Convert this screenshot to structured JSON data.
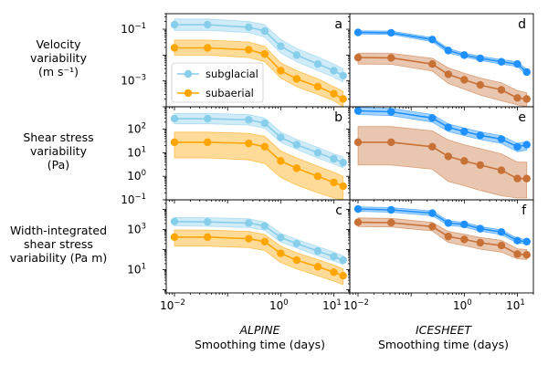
{
  "chart_data": {
    "type": "line",
    "x_scale": "log",
    "y_scale": "log",
    "xlim": [
      0.007,
      20
    ],
    "x_ticks": [
      {
        "v": 0.01,
        "label": "10",
        "exp": "−2"
      },
      {
        "v": 1,
        "label": "10",
        "exp": "0"
      },
      {
        "v": 10,
        "label": "10",
        "exp": "1"
      }
    ],
    "columns": [
      {
        "name": "ALPINE",
        "xlabel": "Smoothing time (days)"
      },
      {
        "name": "ICESHEET",
        "xlabel": "Smoothing time (days)"
      }
    ],
    "rows": [
      {
        "ylabel": [
          "Velocity",
          "variability",
          "(m s⁻¹)"
        ],
        "ylim": [
          0.0001,
          0.4
        ],
        "y_ticks": [
          {
            "v": 0.1,
            "label": "10",
            "exp": "−1"
          },
          {
            "v": 0.001,
            "label": "10",
            "exp": "−3"
          }
        ]
      },
      {
        "ylabel": [
          "Shear stress",
          "variability",
          "(Pa)"
        ],
        "ylim": [
          0.1,
          900
        ],
        "y_ticks": [
          {
            "v": 100,
            "label": "10",
            "exp": "2"
          },
          {
            "v": 10,
            "label": "10",
            "exp": "1"
          },
          {
            "v": 1,
            "label": "10",
            "exp": "0"
          },
          {
            "v": 0.1,
            "label": "10",
            "exp": "−1"
          }
        ]
      },
      {
        "ylabel": [
          "Width-integrated",
          "shear stress",
          "variability (Pa m)"
        ],
        "ylim": [
          0.7,
          30000
        ],
        "y_ticks": [
          {
            "v": 1000,
            "label": "10",
            "exp": "3"
          },
          {
            "v": 10,
            "label": "10",
            "exp": "1"
          }
        ]
      }
    ],
    "x": [
      0.01,
      0.042,
      0.25,
      0.5,
      1,
      2,
      5,
      10,
      15
    ],
    "panels": [
      {
        "label": "a",
        "row": 0,
        "col": 0,
        "series": [
          {
            "name": "subglacial",
            "color": "#87ceeb",
            "fill": "#87ceeb",
            "values": [
              0.15,
              0.15,
              0.12,
              0.085,
              0.022,
              0.01,
              0.0045,
              0.0025,
              0.0016
            ],
            "lower": [
              0.09,
              0.09,
              0.075,
              0.05,
              0.012,
              0.0055,
              0.0025,
              0.0014,
              0.0009
            ],
            "upper": [
              0.25,
              0.25,
              0.2,
              0.15,
              0.04,
              0.018,
              0.0085,
              0.0045,
              0.003
            ]
          },
          {
            "name": "subaerial",
            "color": "#ffa500",
            "fill": "#ffa500",
            "values": [
              0.019,
              0.019,
              0.016,
              0.011,
              0.0025,
              0.0012,
              0.0006,
              0.00032,
              0.0002
            ],
            "lower": [
              0.01,
              0.01,
              0.008,
              0.0055,
              0.0013,
              0.0006,
              0.0003,
              0.00017,
              0.0001
            ],
            "upper": [
              0.038,
              0.038,
              0.032,
              0.022,
              0.005,
              0.0025,
              0.0012,
              0.0006,
              0.0004
            ]
          }
        ]
      },
      {
        "label": "d",
        "row": 0,
        "col": 1,
        "series": [
          {
            "name": "",
            "color": "#1e90ff",
            "fill": "#1e90ff",
            "values": [
              0.075,
              0.073,
              0.04,
              0.015,
              0.01,
              0.0075,
              0.0055,
              0.0045,
              0.0022
            ],
            "lower": [
              0.065,
              0.063,
              0.033,
              0.012,
              0.0085,
              0.0062,
              0.0045,
              0.0036,
              0.0017
            ],
            "upper": [
              0.087,
              0.085,
              0.047,
              0.018,
              0.012,
              0.009,
              0.0067,
              0.0055,
              0.0028
            ]
          },
          {
            "name": "",
            "color": "#c87137",
            "fill": "#c87137",
            "values": [
              0.008,
              0.0078,
              0.0045,
              0.0018,
              0.0011,
              0.0007,
              0.00045,
              0.00022,
              0.0002
            ],
            "lower": [
              0.0045,
              0.0044,
              0.0024,
              0.0008,
              0.00048,
              0.00028,
              0.00017,
              0.00012,
              0.0001
            ],
            "upper": [
              0.012,
              0.0117,
              0.0075,
              0.0032,
              0.002,
              0.0013,
              0.00085,
              0.00042,
              0.00035
            ]
          }
        ]
      },
      {
        "label": "b",
        "row": 1,
        "col": 0,
        "series": [
          {
            "name": "subglacial",
            "color": "#87ceeb",
            "fill": "#87ceeb",
            "values": [
              280,
              280,
              250,
              180,
              45,
              22,
              10,
              5.5,
              3.8
            ],
            "lower": [
              170,
              170,
              150,
              110,
              28,
              14,
              6,
              3.3,
              2.3
            ],
            "upper": [
              470,
              470,
              420,
              300,
              75,
              37,
              17,
              9,
              6.5
            ]
          },
          {
            "name": "subaerial",
            "color": "#ffa500",
            "fill": "#ffa500",
            "values": [
              28,
              28,
              25,
              18,
              4.5,
              2.2,
              1,
              0.55,
              0.38
            ],
            "lower": [
              6,
              6,
              5,
              3.5,
              0.9,
              0.42,
              0.2,
              0.12,
              0.1
            ],
            "upper": [
              75,
              75,
              67,
              50,
              12,
              6,
              2.7,
              1.5,
              1
            ]
          }
        ]
      },
      {
        "label": "e",
        "row": 1,
        "col": 1,
        "series": [
          {
            "name": "",
            "color": "#1e90ff",
            "fill": "#1e90ff",
            "values": [
              600,
              550,
              300,
              120,
              80,
              55,
              38,
              18,
              22
            ],
            "lower": [
              420,
              380,
              200,
              80,
              54,
              37,
              25,
              11,
              13
            ],
            "upper": [
              850,
              780,
              420,
              170,
              112,
              77,
              53,
              25,
              30
            ]
          },
          {
            "name": "",
            "color": "#c87137",
            "fill": "#c87137",
            "values": [
              28,
              28,
              18,
              7,
              4.5,
              3,
              1.8,
              0.8,
              0.8
            ],
            "lower": [
              3,
              3,
              2,
              0.6,
              0.4,
              0.25,
              0.15,
              0.12,
              0.12
            ],
            "upper": [
              130,
              130,
              85,
              35,
              22,
              15,
              9,
              4,
              4
            ]
          }
        ]
      },
      {
        "label": "c",
        "row": 2,
        "col": 0,
        "series": [
          {
            "name": "subglacial",
            "color": "#87ceeb",
            "fill": "#87ceeb",
            "values": [
              2500,
              2400,
              2100,
              1500,
              400,
              200,
              85,
              45,
              30
            ],
            "lower": [
              1500,
              1450,
              1250,
              900,
              240,
              120,
              50,
              27,
              18
            ],
            "upper": [
              4000,
              3900,
              3400,
              2400,
              650,
              320,
              140,
              75,
              50
            ]
          },
          {
            "name": "subaerial",
            "color": "#ffa500",
            "fill": "#ffa500",
            "values": [
              420,
              420,
              350,
              250,
              65,
              30,
              14,
              7.5,
              5
            ],
            "lower": [
              150,
              150,
              125,
              90,
              23,
              11,
              5,
              2.7,
              1.8
            ],
            "upper": [
              950,
              950,
              800,
              570,
              150,
              70,
              32,
              17,
              11
            ]
          }
        ]
      },
      {
        "label": "f",
        "row": 2,
        "col": 1,
        "series": [
          {
            "name": "",
            "color": "#1e90ff",
            "fill": "#1e90ff",
            "values": [
              10500,
              9500,
              6500,
              2100,
              1800,
              1100,
              750,
              280,
              250
            ],
            "lower": [
              8000,
              7200,
              4900,
              1600,
              1350,
              830,
              560,
              210,
              190
            ],
            "upper": [
              13500,
              12300,
              8400,
              2700,
              2300,
              1400,
              970,
              360,
              320
            ]
          },
          {
            "name": "",
            "color": "#c87137",
            "fill": "#c87137",
            "values": [
              2300,
              2200,
              1400,
              450,
              320,
              220,
              160,
              60,
              55
            ],
            "lower": [
              1400,
              1350,
              850,
              230,
              160,
              105,
              75,
              35,
              32
            ],
            "upper": [
              3800,
              3600,
              2300,
              800,
              580,
              400,
              290,
              110,
              100
            ]
          }
        ]
      }
    ],
    "legend": {
      "position": "lower-left of panel a",
      "entries": [
        "subglacial",
        "subaerial"
      ]
    }
  }
}
